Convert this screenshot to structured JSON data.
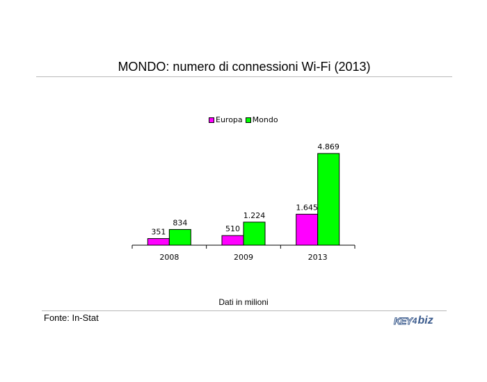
{
  "title": "MONDO: numero di connessioni Wi-Fi (2013)",
  "note": "Dati in milioni",
  "source": "Fonte: In-Stat",
  "logo": {
    "left": "KEY",
    "mid": "4",
    "right": "biz"
  },
  "colors": {
    "europa": "#ff00ff",
    "mondo": "#00ff00"
  },
  "chart_data": {
    "type": "bar",
    "categories": [
      "2008",
      "2009",
      "2013"
    ],
    "series": [
      {
        "name": "Europa",
        "values": [
          351,
          510,
          1645
        ],
        "labels": [
          "351",
          "510",
          "1.645"
        ]
      },
      {
        "name": "Mondo",
        "values": [
          834,
          1224,
          4869
        ],
        "labels": [
          "834",
          "1.224",
          "4.869"
        ]
      }
    ],
    "legend_position": "top-center",
    "grid": false
  }
}
